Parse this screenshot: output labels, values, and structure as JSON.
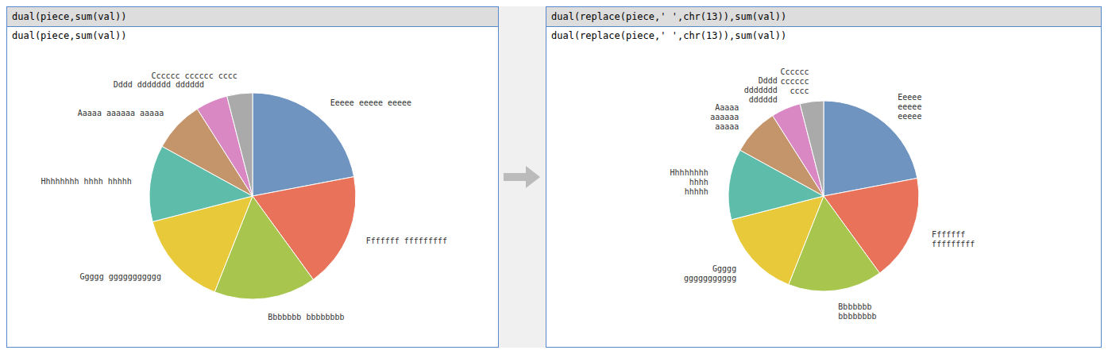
{
  "chart_data": [
    {
      "type": "pie",
      "title": "dual(piece,sum(val))",
      "subtitle": "dual(piece,sum(val))",
      "categories": [
        "Eeeee eeeee eeeee",
        "Fffffff fffffffff",
        "Bbbbbbb bbbbbbbb",
        "Ggggg ggggggggggg",
        "Hhhhhhhh hhhh hhhhh",
        "Aaaaa aaaaaa aaaaa",
        "Dddd ddddddd dddddd",
        "Cccccc cccccc cccc"
      ],
      "values": [
        22,
        18,
        16,
        15,
        12,
        8,
        5,
        4
      ],
      "colors": [
        "#7094C0",
        "#E8735A",
        "#A8C64E",
        "#E8C93A",
        "#5EBDAA",
        "#C4956A",
        "#D988C4",
        "#AAAAAA"
      ]
    },
    {
      "type": "pie",
      "title": "dual(replace(piece,' ',chr(13)),sum(val))",
      "subtitle": "dual(replace(piece,' ',chr(13)),sum(val))",
      "categories": [
        "Eeeee\neeeee\neeeee",
        "Fffffff\nfffffffff",
        "Bbbbbbb\nbbbbbbbb",
        "Ggggg\nggggggggggg",
        "Hhhhhhhh\nhhhh\nhhhhh",
        "Aaaaa\naaaaaa\naaaaa",
        "Dddd\nddddddd\ndddddd",
        "Cccccc\ncccccc\ncccc"
      ],
      "values": [
        22,
        18,
        16,
        15,
        12,
        8,
        5,
        4
      ],
      "colors": [
        "#7094C0",
        "#E8735A",
        "#A8C64E",
        "#E8C93A",
        "#5EBDAA",
        "#C4956A",
        "#D988C4",
        "#AAAAAA"
      ]
    }
  ]
}
